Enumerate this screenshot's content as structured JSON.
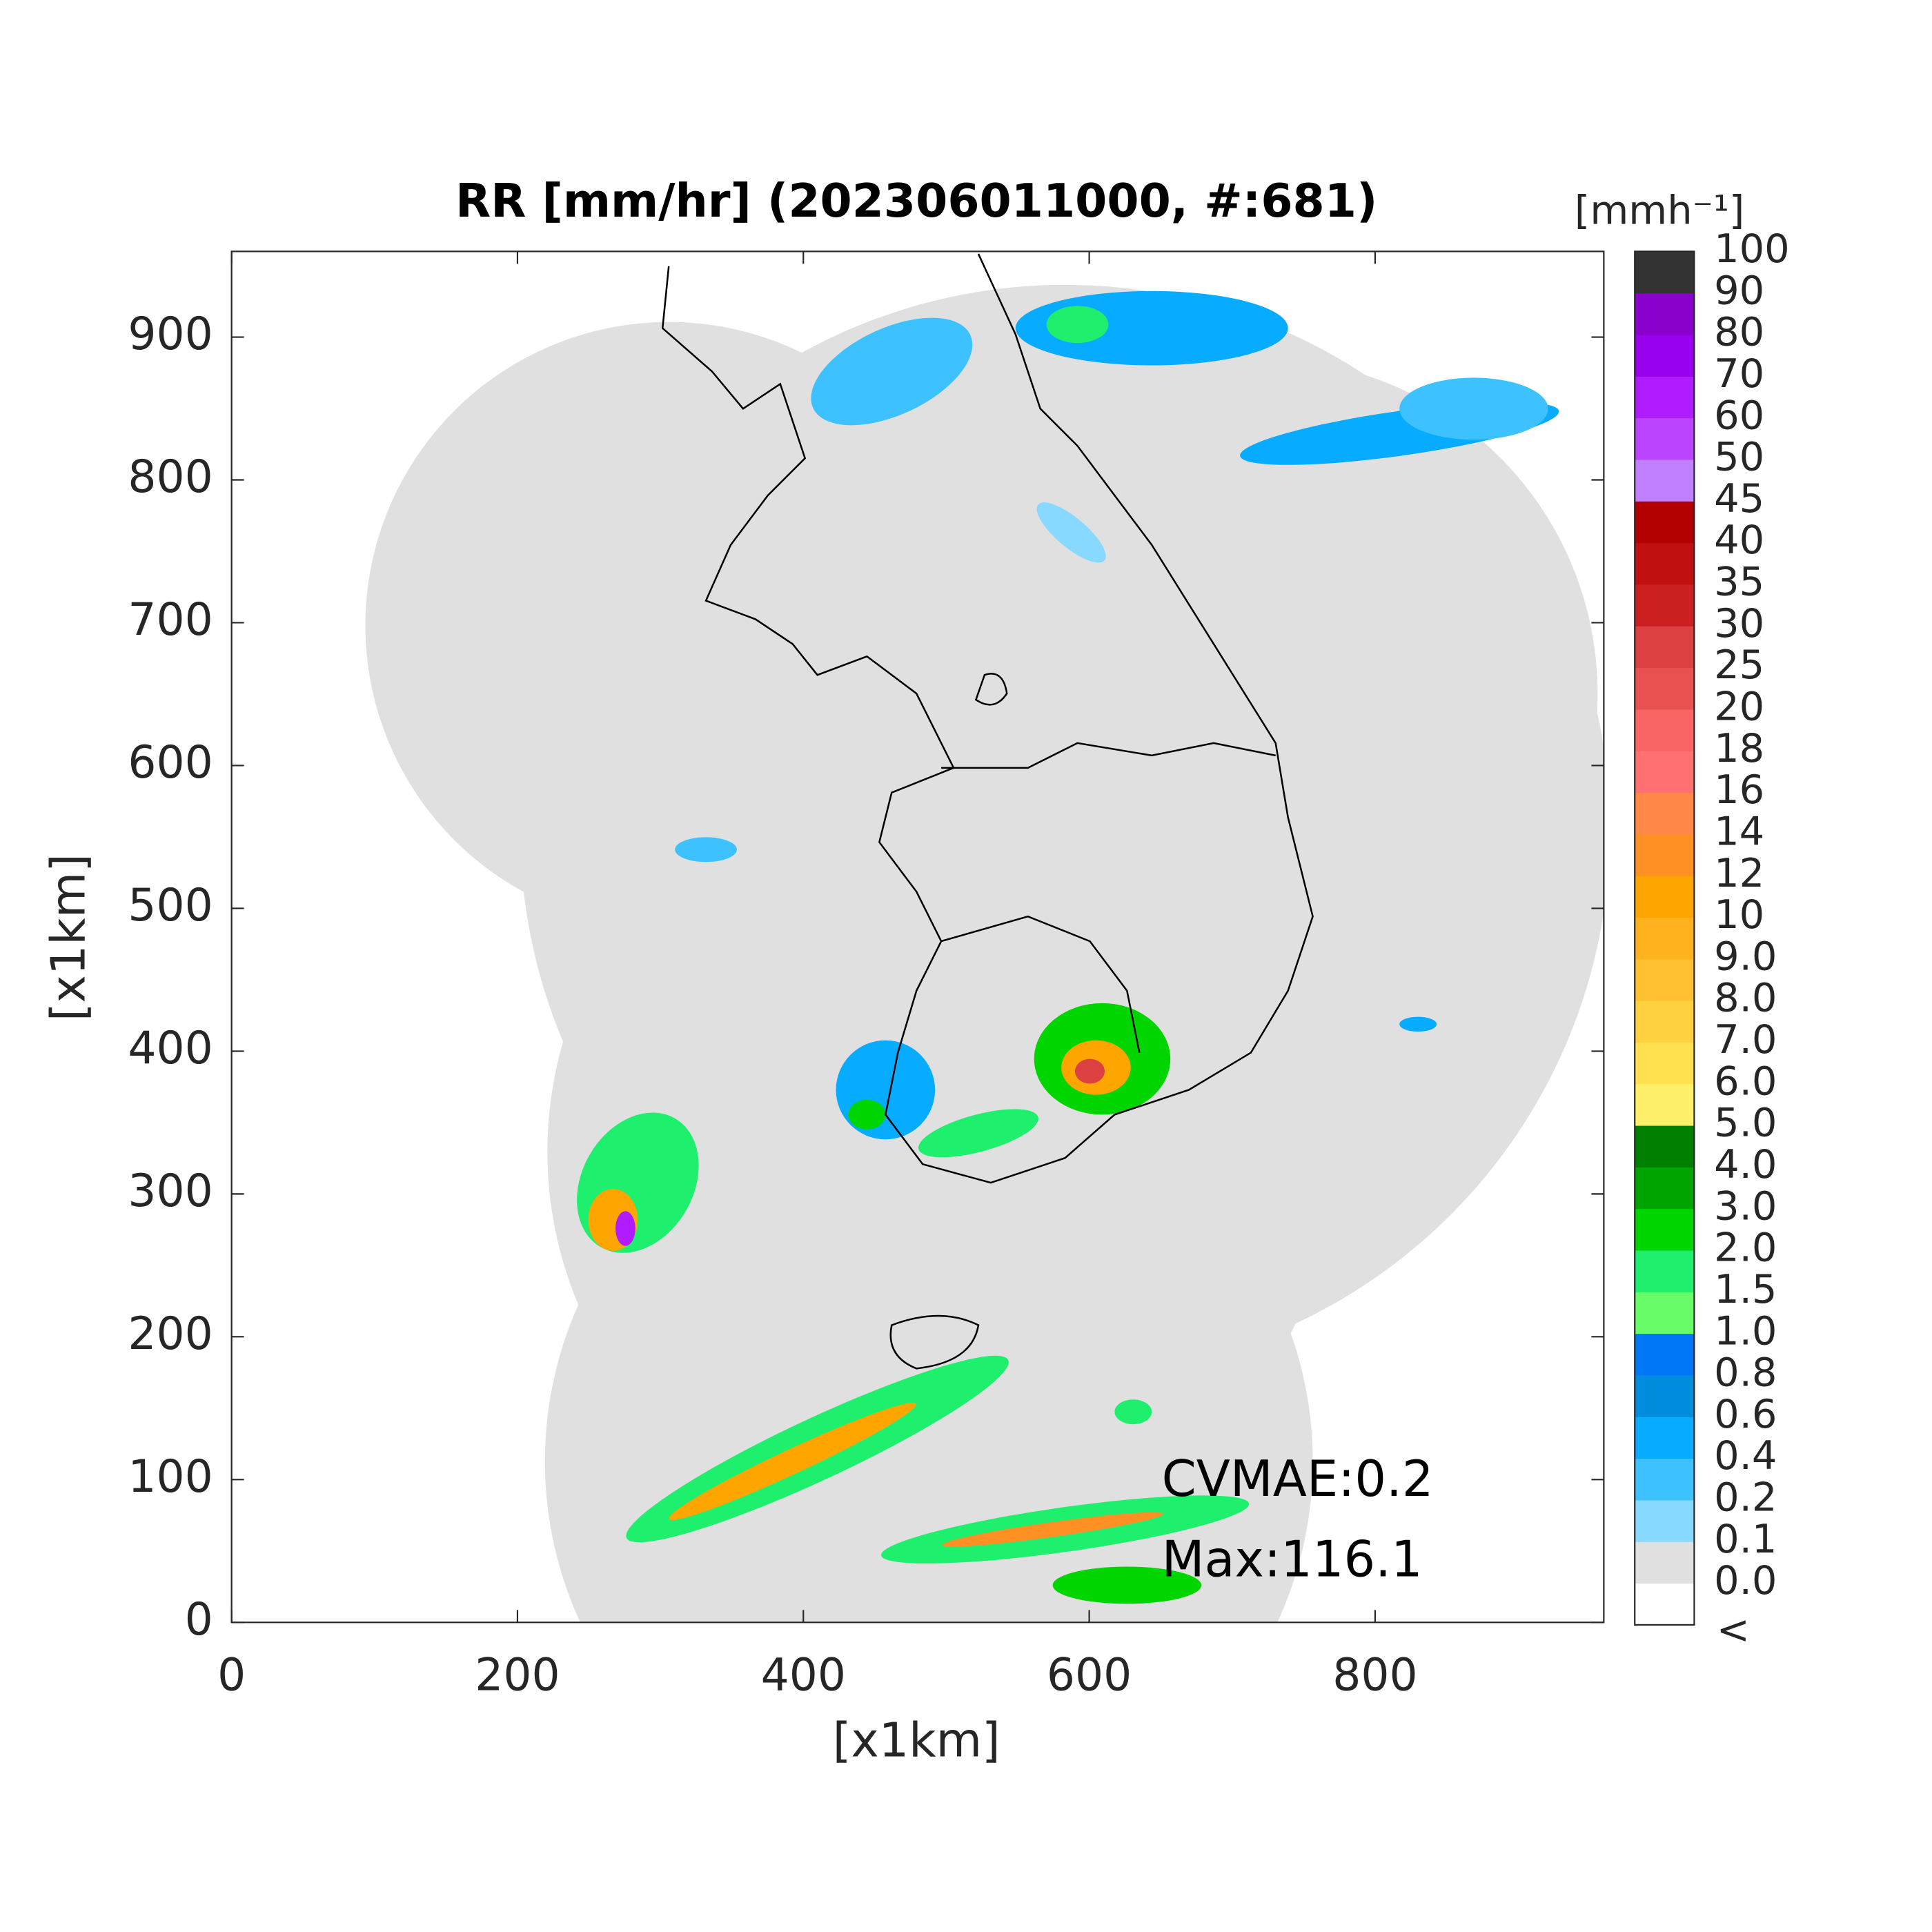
{
  "chart_data": {
    "type": "heatmap",
    "title": "RR [mm/hr] (202306011000, #:681)",
    "xlabel": "[x1km]",
    "ylabel": "[x1km]",
    "xlim": [
      0,
      960
    ],
    "ylim": [
      0,
      960
    ],
    "xticks": [
      0,
      200,
      400,
      600,
      800
    ],
    "yticks": [
      0,
      100,
      200,
      300,
      400,
      500,
      600,
      700,
      800,
      900
    ],
    "annotations": [
      "CVMAE:0.2",
      "Max:116.1"
    ],
    "colorbar": {
      "label": "[mmh⁻¹]",
      "under_label": "<",
      "ticks": [
        {
          "value": 0,
          "label": "0.0"
        },
        0.1,
        0.2,
        0.4,
        0.6,
        0.8,
        {
          "value": 1,
          "label": "1.0"
        },
        1.5,
        {
          "value": 2,
          "label": "2.0"
        },
        {
          "value": 3,
          "label": "3.0"
        },
        {
          "value": 4,
          "label": "4.0"
        },
        {
          "value": 5,
          "label": "5.0"
        },
        {
          "value": 6,
          "label": "6.0"
        },
        {
          "value": 7,
          "label": "7.0"
        },
        {
          "value": 8,
          "label": "8.0"
        },
        {
          "value": 9,
          "label": "9.0"
        },
        10,
        12,
        14,
        16,
        18,
        20,
        25,
        30,
        35,
        40,
        45,
        50,
        60,
        70,
        80,
        90,
        100
      ],
      "colors": [
        "#ffffff",
        "#e0e0e0",
        "#87d9ff",
        "#3ec1ff",
        "#07abff",
        "#008dde",
        "#0077f7",
        "#69fc69",
        "#1ef06e",
        "#00d500",
        "#00a400",
        "#008000",
        "#fff06b",
        "#ffe04f",
        "#ffd040",
        "#ffc031",
        "#ffb21e",
        "#ffa500",
        "#ff9023",
        "#ff8748",
        "#ff7070",
        "#f96464",
        "#e95050",
        "#dc4040",
        "#cc2020",
        "#c01010",
        "#b30000",
        "#c080ff",
        "#bb44ff",
        "#b01cff",
        "#9900ee",
        "#8a00cc",
        "#333333"
      ]
    }
  }
}
